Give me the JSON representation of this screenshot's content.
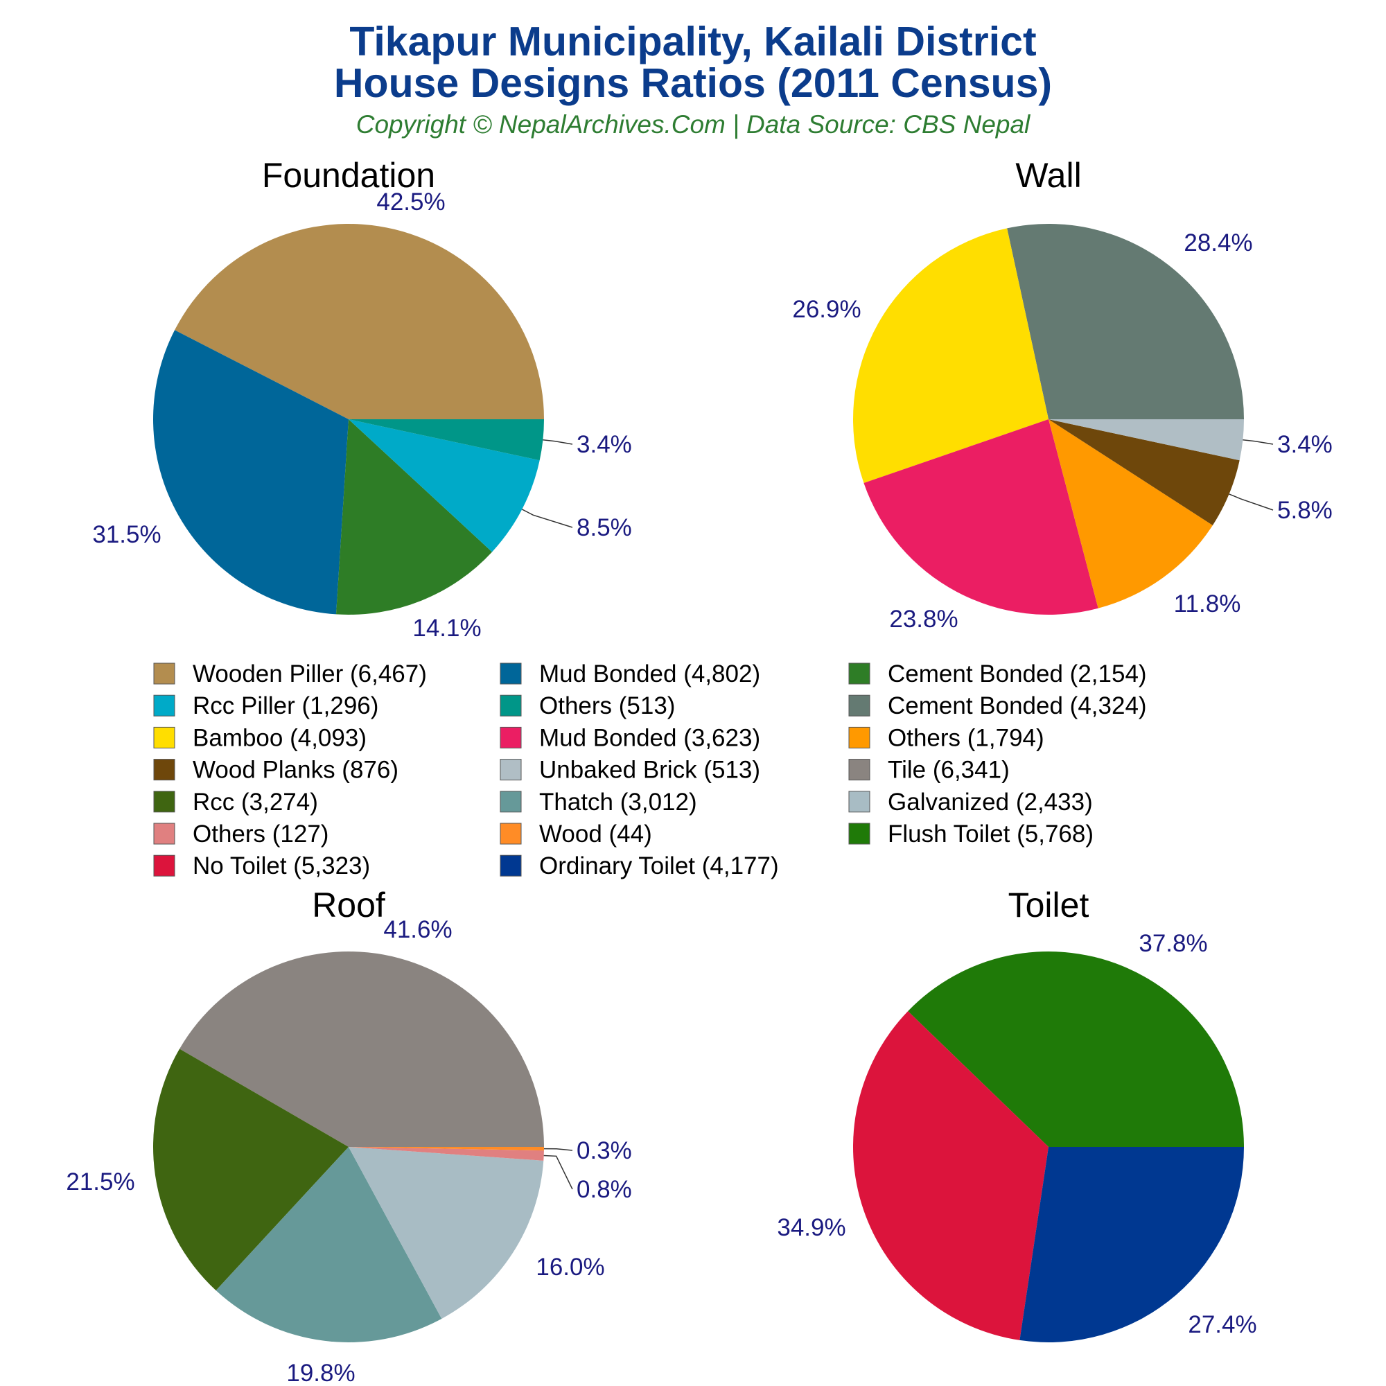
{
  "header": {
    "title_line1": "Tikapur Municipality, Kailali District",
    "title_line2": "House Designs Ratios (2011 Census)",
    "subtitle": "Copyright © NepalArchives.Com | Data Source: CBS Nepal"
  },
  "chart_data": [
    {
      "type": "pie",
      "title": "Foundation",
      "slices": [
        {
          "label": "Wooden Piller",
          "value": 6467,
          "pct": "42.5%",
          "color": "#b38d4f"
        },
        {
          "label": "Mud Bonded",
          "value": 4802,
          "pct": "31.5%",
          "color": "#006699"
        },
        {
          "label": "Cement Bonded",
          "value": 2154,
          "pct": "14.1%",
          "color": "#2e7d26"
        },
        {
          "label": "Rcc Piller",
          "value": 1296,
          "pct": "8.5%",
          "color": "#00aac8"
        },
        {
          "label": "Others",
          "value": 513,
          "pct": "3.4%",
          "color": "#009688"
        }
      ]
    },
    {
      "type": "pie",
      "title": "Wall",
      "slices": [
        {
          "label": "Cement Bonded",
          "value": 4324,
          "pct": "28.4%",
          "color": "#647a72"
        },
        {
          "label": "Bamboo",
          "value": 4093,
          "pct": "26.9%",
          "color": "#ffde00"
        },
        {
          "label": "Mud Bonded",
          "value": 3623,
          "pct": "23.8%",
          "color": "#eb1e63"
        },
        {
          "label": "Others",
          "value": 1794,
          "pct": "11.8%",
          "color": "#ff9900"
        },
        {
          "label": "Wood Planks",
          "value": 876,
          "pct": "5.8%",
          "color": "#6e470b"
        },
        {
          "label": "Unbaked Brick",
          "value": 513,
          "pct": "3.4%",
          "color": "#b0bec5"
        }
      ]
    },
    {
      "type": "pie",
      "title": "Roof",
      "slices": [
        {
          "label": "Tile",
          "value": 6341,
          "pct": "41.6%",
          "color": "#8a8480"
        },
        {
          "label": "Rcc",
          "value": 3274,
          "pct": "21.5%",
          "color": "#3f6511"
        },
        {
          "label": "Thatch",
          "value": 3012,
          "pct": "19.8%",
          "color": "#669999"
        },
        {
          "label": "Galvanized",
          "value": 2433,
          "pct": "16.0%",
          "color": "#a8bcc4"
        },
        {
          "label": "Others",
          "value": 127,
          "pct": "0.8%",
          "color": "#e08080"
        },
        {
          "label": "Wood",
          "value": 44,
          "pct": "0.3%",
          "color": "#ff8c26"
        }
      ]
    },
    {
      "type": "pie",
      "title": "Toilet",
      "slices": [
        {
          "label": "Flush Toilet",
          "value": 5768,
          "pct": "37.8%",
          "color": "#1f7a08"
        },
        {
          "label": "No Toilet",
          "value": 5323,
          "pct": "34.9%",
          "color": "#dc143c"
        },
        {
          "label": "Ordinary Toilet",
          "value": 4177,
          "pct": "27.4%",
          "color": "#003891"
        }
      ]
    }
  ],
  "legend": [
    {
      "text": "Wooden Piller (6,467)",
      "color": "#b38d4f"
    },
    {
      "text": "Mud Bonded (4,802)",
      "color": "#006699"
    },
    {
      "text": "Cement Bonded (2,154)",
      "color": "#2e7d26"
    },
    {
      "text": "Rcc Piller (1,296)",
      "color": "#00aac8"
    },
    {
      "text": "Others (513)",
      "color": "#009688"
    },
    {
      "text": "Cement Bonded (4,324)",
      "color": "#647a72"
    },
    {
      "text": "Bamboo (4,093)",
      "color": "#ffde00"
    },
    {
      "text": "Mud Bonded (3,623)",
      "color": "#eb1e63"
    },
    {
      "text": "Others (1,794)",
      "color": "#ff9900"
    },
    {
      "text": "Wood Planks (876)",
      "color": "#6e470b"
    },
    {
      "text": "Unbaked Brick (513)",
      "color": "#b0bec5"
    },
    {
      "text": "Tile (6,341)",
      "color": "#8a8480"
    },
    {
      "text": "Rcc (3,274)",
      "color": "#3f6511"
    },
    {
      "text": "Thatch (3,012)",
      "color": "#669999"
    },
    {
      "text": "Galvanized (2,433)",
      "color": "#a8bcc4"
    },
    {
      "text": "Others (127)",
      "color": "#e08080"
    },
    {
      "text": "Wood (44)",
      "color": "#ff8c26"
    },
    {
      "text": "Flush Toilet (5,768)",
      "color": "#1f7a08"
    },
    {
      "text": "No Toilet (5,323)",
      "color": "#dc143c"
    },
    {
      "text": "Ordinary Toilet (4,177)",
      "color": "#003891"
    }
  ]
}
